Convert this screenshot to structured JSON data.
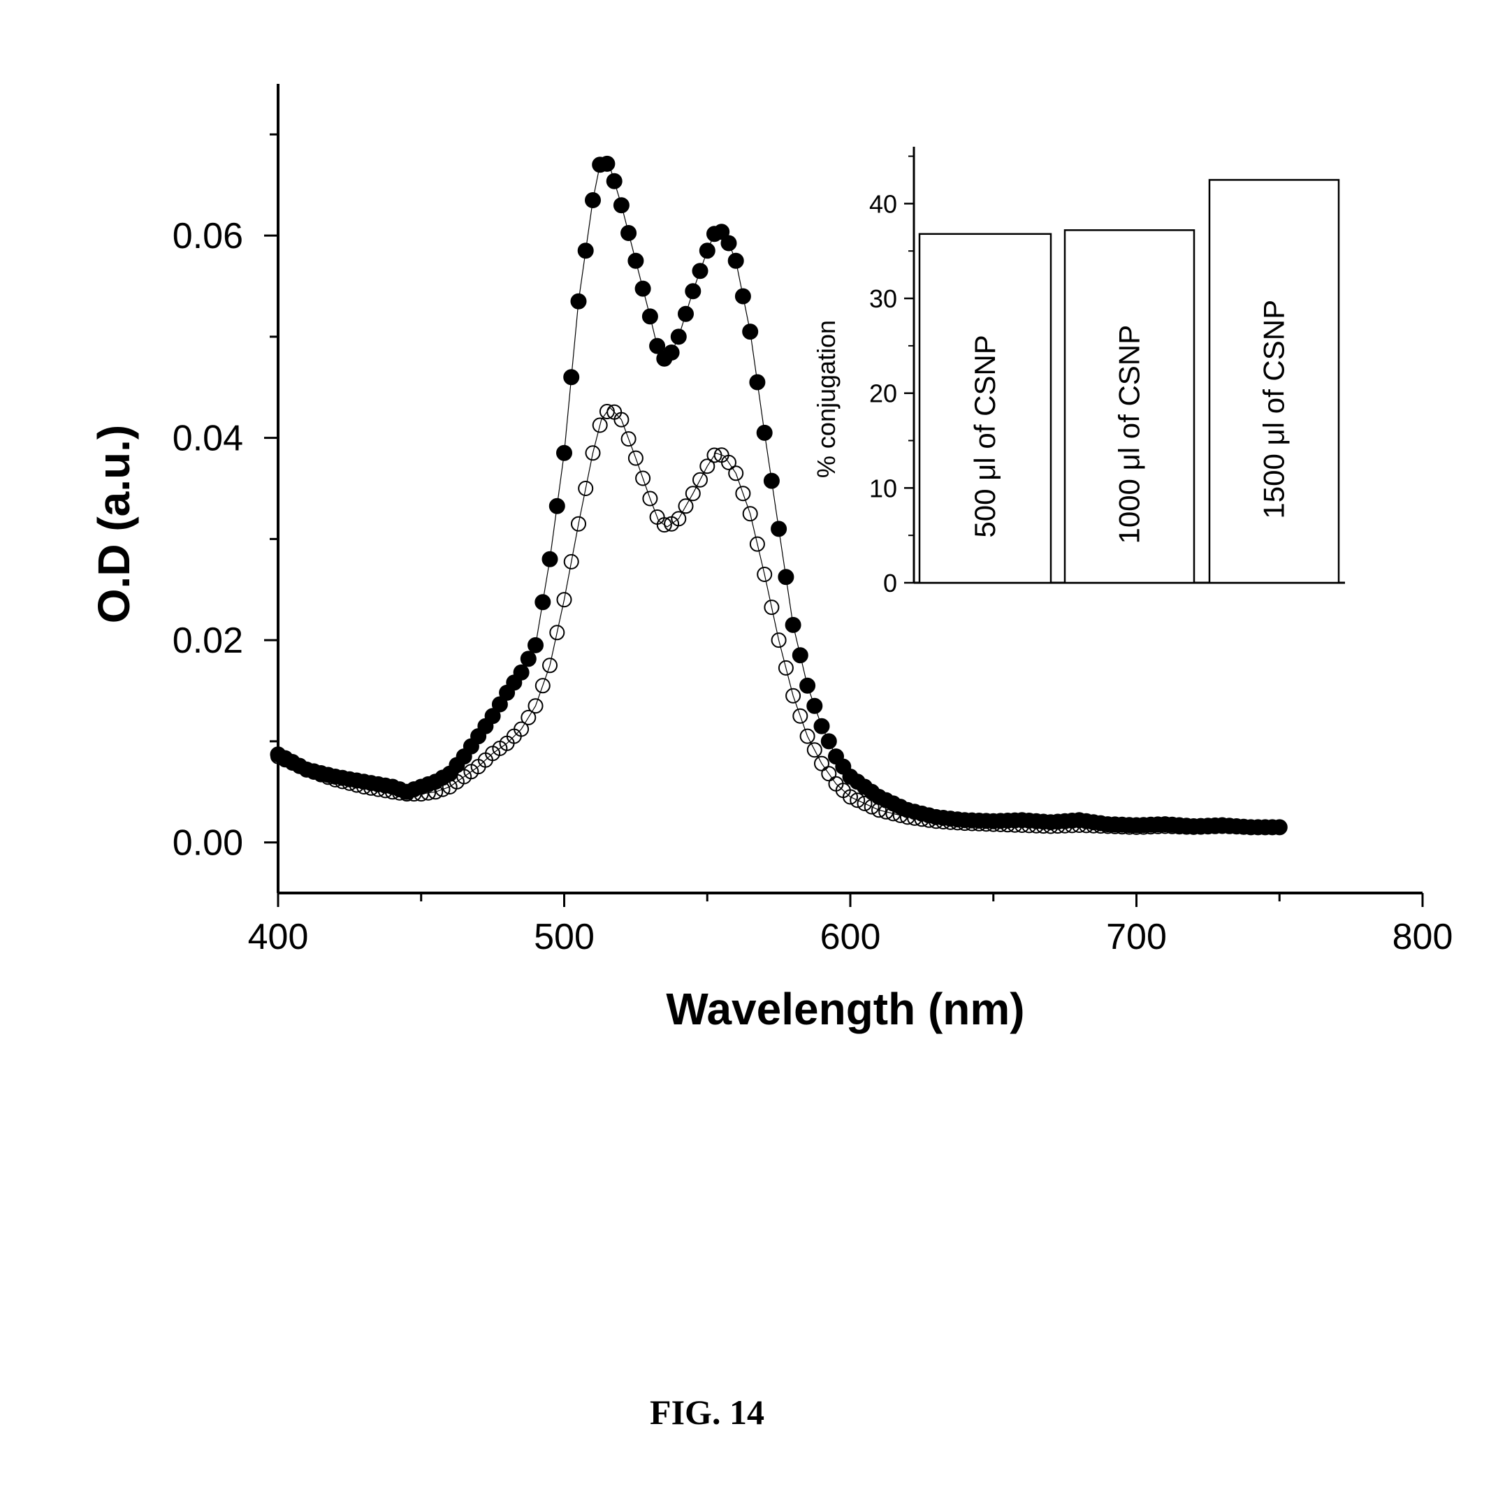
{
  "chart_data": [
    {
      "type": "scatter",
      "xlabel": "Wavelength (nm)",
      "ylabel": "O.D (a.u.)",
      "xlim": [
        400,
        800
      ],
      "ylim": [
        -0.005,
        0.075
      ],
      "x_ticks": [
        400,
        500,
        600,
        700,
        800
      ],
      "x_tick_labels": [
        "400",
        "500",
        "600",
        "700",
        "800"
      ],
      "y_ticks": [
        0.0,
        0.02,
        0.04,
        0.06
      ],
      "y_tick_labels": [
        "0.00",
        "0.02",
        "0.04",
        "0.06"
      ],
      "marker_styles": {
        "series_1": "filled-circle",
        "series_2": "open-circle"
      },
      "series": [
        {
          "marker": "filled",
          "x": [
            400,
            410,
            420,
            430,
            440,
            445,
            450,
            455,
            460,
            465,
            470,
            475,
            480,
            485,
            490,
            495,
            500,
            505,
            510,
            513,
            516,
            520,
            525,
            530,
            533,
            536,
            540,
            545,
            550,
            553,
            556,
            560,
            565,
            570,
            575,
            580,
            585,
            590,
            595,
            600,
            610,
            620,
            630,
            640,
            650,
            660,
            670,
            680,
            690,
            700,
            710,
            720,
            730,
            740,
            750
          ],
          "y": [
            0.0087,
            0.0072,
            0.0065,
            0.006,
            0.0055,
            0.005,
            0.0055,
            0.006,
            0.0068,
            0.0085,
            0.0105,
            0.0125,
            0.0148,
            0.0168,
            0.0195,
            0.028,
            0.0385,
            0.0535,
            0.0635,
            0.0677,
            0.0668,
            0.063,
            0.0575,
            0.052,
            0.0485,
            0.0475,
            0.05,
            0.0545,
            0.0585,
            0.0605,
            0.0603,
            0.0575,
            0.0505,
            0.0405,
            0.031,
            0.0215,
            0.0155,
            0.0115,
            0.0085,
            0.0065,
            0.0045,
            0.0032,
            0.0025,
            0.0022,
            0.0021,
            0.0022,
            0.002,
            0.0022,
            0.0018,
            0.0017,
            0.0018,
            0.0016,
            0.0017,
            0.0015,
            0.0015
          ]
        },
        {
          "marker": "open",
          "x": [
            400,
            410,
            420,
            430,
            440,
            445,
            450,
            455,
            460,
            465,
            470,
            475,
            480,
            485,
            490,
            495,
            500,
            505,
            510,
            513,
            516,
            520,
            525,
            530,
            533,
            536,
            540,
            545,
            550,
            553,
            556,
            560,
            565,
            570,
            575,
            580,
            585,
            590,
            595,
            600,
            610,
            620,
            630,
            640,
            650,
            660,
            670,
            680,
            690,
            700,
            710,
            720,
            730,
            740,
            750
          ],
          "y": [
            0.0085,
            0.0072,
            0.0062,
            0.0055,
            0.005,
            0.0048,
            0.0048,
            0.005,
            0.0055,
            0.0065,
            0.0075,
            0.0088,
            0.0098,
            0.0112,
            0.0135,
            0.0175,
            0.024,
            0.0315,
            0.0385,
            0.0418,
            0.043,
            0.0418,
            0.038,
            0.034,
            0.0318,
            0.0312,
            0.032,
            0.0345,
            0.0372,
            0.0385,
            0.0382,
            0.0365,
            0.0325,
            0.0265,
            0.02,
            0.0145,
            0.0105,
            0.0078,
            0.0058,
            0.0045,
            0.0032,
            0.0025,
            0.0021,
            0.0019,
            0.0018,
            0.0017,
            0.0016,
            0.0017,
            0.0016,
            0.0015,
            0.0016,
            0.0015,
            0.0016,
            0.0015,
            0.0015
          ]
        }
      ]
    },
    {
      "type": "bar",
      "ylabel": "% conjugation",
      "ylim": [
        0,
        46
      ],
      "y_ticks": [
        0,
        10,
        20,
        30,
        40
      ],
      "y_tick_labels": [
        "0",
        "10",
        "20",
        "30",
        "40"
      ],
      "categories": [
        "500 μl of CSNP",
        "1000 μl of CSNP",
        "1500 μl of CSNP"
      ],
      "values": [
        36.8,
        37.2,
        42.5
      ]
    }
  ],
  "caption": "FIG. 14"
}
